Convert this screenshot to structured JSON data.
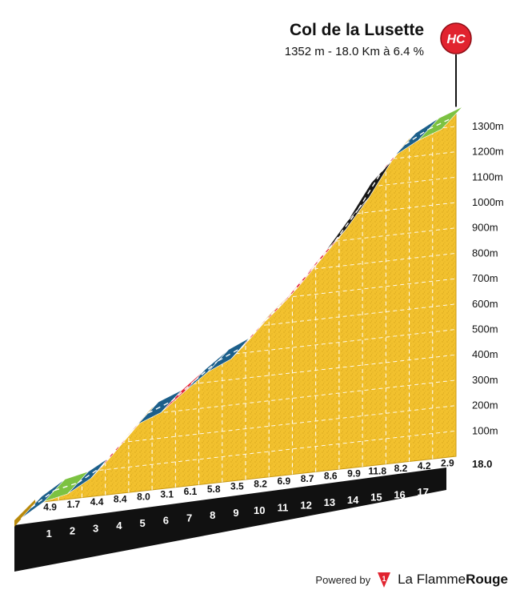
{
  "header": {
    "title": "Col de la Lusette",
    "subtitle": "1352 m - 18.0 Km à 6.4 %",
    "category_badge": "HC"
  },
  "footer": {
    "powered_by": "Powered by",
    "brand_part1": "La Flamme",
    "brand_part2": "Rouge",
    "logo_icon": "flame-one-logo-icon"
  },
  "colors": {
    "terrain": "#f2c12e",
    "terrain_dark": "#c99a16",
    "side": "#b98a0c",
    "base": "#111111",
    "slope_0_3": "#7cc242",
    "slope_3_6": "#1c5f8a",
    "slope_6_9": "#e2263a",
    "slope_9_plus": "#161616",
    "badge": "#e1232f"
  },
  "chart_data": {
    "type": "area",
    "title": "Col de la Lusette",
    "subtitle": "1352 m - 18.0 Km à 6.4 %",
    "xlabel": "",
    "ylabel": "",
    "total_distance_label": "18.0",
    "km_markers": [
      1,
      2,
      3,
      4,
      5,
      6,
      7,
      8,
      9,
      10,
      11,
      12,
      13,
      14,
      15,
      16,
      17
    ],
    "segment_gradients": [
      4.9,
      1.7,
      4.4,
      8.4,
      8.0,
      3.1,
      6.1,
      5.8,
      3.5,
      8.2,
      6.9,
      8.7,
      8.6,
      9.9,
      11.8,
      8.2,
      4.2,
      2.9
    ],
    "segment_gradient_labels": [
      "4.9",
      "1.7",
      "4.4",
      "8.4",
      "8.0",
      "3.1",
      "6.1",
      "5.8",
      "3.5",
      "8.2",
      "6.9",
      "8.7",
      "8.6",
      "9.9",
      "11.8",
      "8.2",
      "4.2",
      "2.9"
    ],
    "y_ticks": [
      100,
      200,
      300,
      400,
      500,
      600,
      700,
      800,
      900,
      1000,
      1100,
      1200,
      1300
    ],
    "y_tick_labels": [
      "100m",
      "200m",
      "300m",
      "400m",
      "500m",
      "600m",
      "700m",
      "800m",
      "900m",
      "1000m",
      "1100m",
      "1200m",
      "1300m"
    ],
    "summit_altitude": 1352,
    "distance_km": 18.0,
    "average_gradient": 6.4,
    "gradient_legend_thresholds": [
      3,
      6,
      9
    ]
  }
}
